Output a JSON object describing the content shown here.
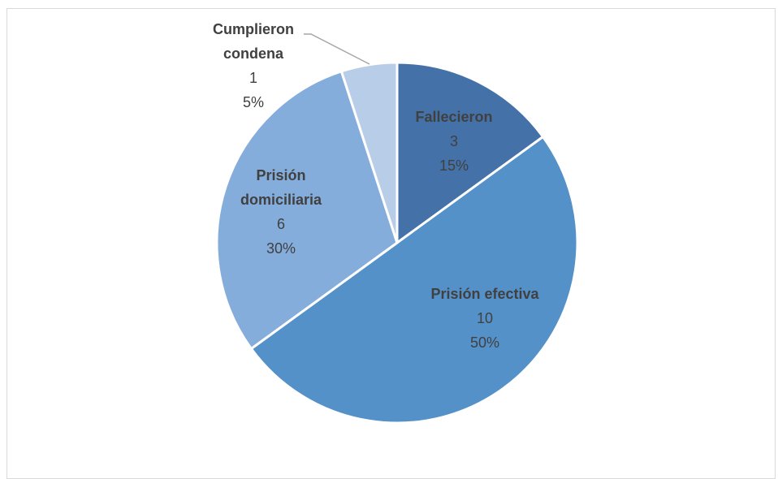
{
  "chart_data": {
    "type": "pie",
    "slices": [
      {
        "label": "Fallecieron",
        "value": 3,
        "percent": "15%",
        "color": "#4472a8"
      },
      {
        "label": "Prisión efectiva",
        "value": 10,
        "percent": "50%",
        "color": "#5591c9"
      },
      {
        "label": "Prisión domiciliaria",
        "value": 6,
        "percent": "30%",
        "color": "#84addc"
      },
      {
        "label": "Cumplieron condena",
        "value": 1,
        "percent": "5%",
        "color": "#b8cde8"
      }
    ],
    "start_angle_deg": 0,
    "direction": "clockwise",
    "data_labels": {
      "show_category": true,
      "show_value": true,
      "show_percent": true
    }
  }
}
